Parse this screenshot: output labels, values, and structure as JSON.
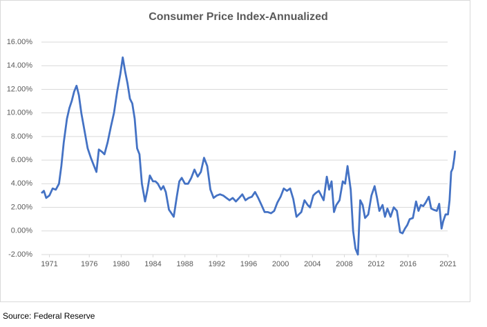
{
  "chart_data": {
    "type": "line",
    "title": "Consumer Price Index-Annualized",
    "source": "Source:  Federal Reserve",
    "x": [
      1970.0,
      1970.3,
      1970.6,
      1971.0,
      1971.4,
      1971.8,
      1972.2,
      1972.5,
      1972.8,
      1973.2,
      1973.5,
      1973.8,
      1974.1,
      1974.4,
      1974.7,
      1975.0,
      1975.4,
      1975.8,
      1976.2,
      1976.6,
      1976.9,
      1977.2,
      1977.6,
      1977.9,
      1978.3,
      1978.7,
      1979.1,
      1979.5,
      1979.9,
      1980.2,
      1980.5,
      1980.8,
      1981.1,
      1981.4,
      1981.7,
      1982.0,
      1982.3,
      1982.6,
      1983.0,
      1983.3,
      1983.6,
      1984.0,
      1984.3,
      1984.6,
      1985.0,
      1985.3,
      1985.6,
      1986.0,
      1986.3,
      1986.6,
      1987.0,
      1987.3,
      1987.6,
      1988.0,
      1988.4,
      1988.8,
      1989.2,
      1989.6,
      1990.0,
      1990.4,
      1990.8,
      1991.2,
      1991.6,
      1992.0,
      1992.4,
      1992.8,
      1993.2,
      1993.6,
      1994.0,
      1994.4,
      1994.8,
      1995.2,
      1995.6,
      1996.0,
      1996.4,
      1996.8,
      1997.2,
      1997.6,
      1998.0,
      1998.4,
      1998.8,
      1999.2,
      1999.6,
      2000.0,
      2000.4,
      2000.8,
      2001.2,
      2001.6,
      2002.0,
      2002.3,
      2002.6,
      2003.0,
      2003.4,
      2003.7,
      2004.1,
      2004.4,
      2004.8,
      2005.1,
      2005.4,
      2005.8,
      2006.1,
      2006.4,
      2006.7,
      2007.0,
      2007.4,
      2007.8,
      2008.1,
      2008.4,
      2008.8,
      2009.1,
      2009.4,
      2009.7,
      2010.0,
      2010.3,
      2010.6,
      2011.0,
      2011.4,
      2011.8,
      2012.1,
      2012.4,
      2012.8,
      2013.1,
      2013.4,
      2013.8,
      2014.2,
      2014.6,
      2015.0,
      2015.3,
      2015.6,
      2015.9,
      2016.2,
      2016.6,
      2017.0,
      2017.3,
      2017.6,
      2017.9,
      2018.2,
      2018.6,
      2018.9,
      2019.2,
      2019.6,
      2019.9,
      2020.2,
      2020.4,
      2020.7,
      2021.0,
      2021.2,
      2021.4,
      2021.6,
      2021.8,
      2021.9
    ],
    "series": [
      {
        "color": "#4472c4",
        "values": [
          3.2,
          3.4,
          2.8,
          3.0,
          3.6,
          3.5,
          4.0,
          5.5,
          7.5,
          9.5,
          10.4,
          11.0,
          11.8,
          12.3,
          11.5,
          10.0,
          8.5,
          7.0,
          6.2,
          5.5,
          5.0,
          6.9,
          6.7,
          6.5,
          7.5,
          8.8,
          10.0,
          11.8,
          13.3,
          14.7,
          13.5,
          12.5,
          11.2,
          10.8,
          9.5,
          7.0,
          6.5,
          4.0,
          2.5,
          3.5,
          4.7,
          4.2,
          4.2,
          4.0,
          3.5,
          3.8,
          3.3,
          1.8,
          1.5,
          1.2,
          3.0,
          4.2,
          4.5,
          4.0,
          4.0,
          4.5,
          5.2,
          4.6,
          5.0,
          6.2,
          5.5,
          3.5,
          2.8,
          3.0,
          3.1,
          3.0,
          2.8,
          2.6,
          2.8,
          2.5,
          2.8,
          3.1,
          2.6,
          2.8,
          2.9,
          3.3,
          2.8,
          2.2,
          1.6,
          1.6,
          1.5,
          1.7,
          2.4,
          2.9,
          3.6,
          3.4,
          3.6,
          2.7,
          1.2,
          1.4,
          1.6,
          2.6,
          2.2,
          2.0,
          3.0,
          3.2,
          3.4,
          3.0,
          2.6,
          4.6,
          3.5,
          4.2,
          1.6,
          2.2,
          2.6,
          4.2,
          4.0,
          5.5,
          3.5,
          0.0,
          -1.5,
          -2.0,
          2.6,
          2.2,
          1.1,
          1.4,
          3.0,
          3.8,
          2.8,
          1.7,
          2.2,
          1.2,
          1.9,
          1.2,
          2.0,
          1.7,
          -0.1,
          -0.2,
          0.2,
          0.5,
          1.0,
          1.1,
          2.5,
          1.7,
          2.2,
          2.1,
          2.4,
          2.9,
          1.9,
          1.8,
          1.7,
          2.3,
          0.2,
          0.8,
          1.4,
          1.4,
          2.6,
          5.0,
          5.3,
          6.2,
          6.8
        ]
      }
    ],
    "xlim": [
      1970,
      2022
    ],
    "xticks": [
      1971,
      1976,
      1980,
      1984,
      1988,
      1992,
      1996,
      2000,
      2004,
      2008,
      2012,
      2016,
      2021
    ],
    "ylim": [
      -2,
      16
    ],
    "yticks": [
      {
        "value": -2,
        "label": "-2.00%"
      },
      {
        "value": 0,
        "label": "0.00%"
      },
      {
        "value": 2,
        "label": "2.00%"
      },
      {
        "value": 4,
        "label": "4.00%"
      },
      {
        "value": 6,
        "label": "6.00%"
      },
      {
        "value": 8,
        "label": "8.00%"
      },
      {
        "value": 10,
        "label": "10.00%"
      },
      {
        "value": 12,
        "label": "12.00%"
      },
      {
        "value": 14,
        "label": "14.00%"
      },
      {
        "value": 16,
        "label": "16.00%"
      }
    ],
    "grid": true
  }
}
